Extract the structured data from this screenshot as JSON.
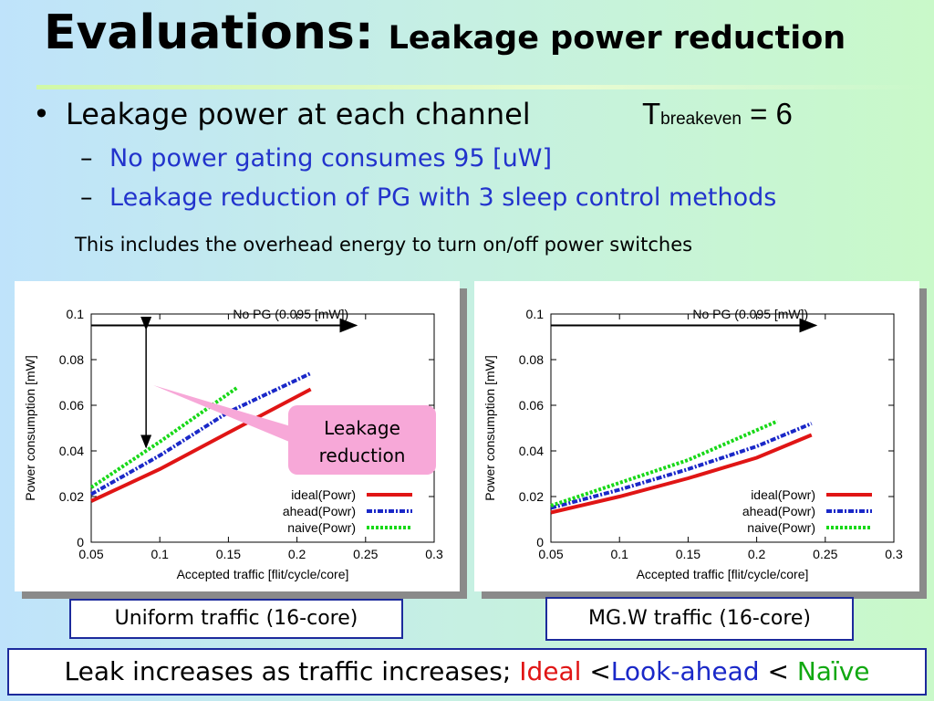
{
  "slide": {
    "title_main": "Evaluations:",
    "title_sub": "Leakage power reduction",
    "bullet": "Leakage power at each channel",
    "tbreakeven": {
      "t": "T",
      "sub": "breakeven",
      "rest": " = 6"
    },
    "sub_items": [
      "No power gating consumes 95 [uW]",
      "Leakage reduction of PG with 3 sleep control methods"
    ],
    "note": "This includes the overhead energy to turn on/off power switches",
    "callout": [
      "Leakage",
      "reduction"
    ],
    "captions": [
      "Uniform traffic (16-core)",
      "MG.W traffic (16-core)"
    ],
    "conclusion": {
      "prefix": "Leak increases as traffic increases; ",
      "ideal": "Ideal",
      "lt1": " <",
      "ahead": "Look-ahead",
      "lt2": " < ",
      "naive": "Naïve"
    }
  },
  "colors": {
    "ideal": "#e01515",
    "ahead": "#1a28c8",
    "naive": "#18d818"
  },
  "chart_data": [
    {
      "type": "line",
      "xlabel": "Accepted traffic [flit/cycle/core]",
      "ylabel": "Power consumption [mW]",
      "xlim": [
        0.05,
        0.3
      ],
      "ylim": [
        0,
        0.1
      ],
      "x_ticks": [
        "0.05",
        "0.1",
        "0.15",
        "0.2",
        "0.25",
        "0.3"
      ],
      "y_ticks": [
        "0",
        "0.02",
        "0.04",
        "0.06",
        "0.08",
        "0.1"
      ],
      "annotation": "No PG (0.095 [mW])",
      "reference_y": 0.095,
      "legend_position": "bottom-right",
      "series": [
        {
          "name": "ideal(Powr)",
          "key": "ideal",
          "x": [
            0.05,
            0.1,
            0.15,
            0.21
          ],
          "y": [
            0.018,
            0.032,
            0.048,
            0.067
          ]
        },
        {
          "name": "ahead(Powr)",
          "key": "ahead",
          "x": [
            0.05,
            0.1,
            0.15,
            0.21
          ],
          "y": [
            0.021,
            0.038,
            0.057,
            0.074
          ]
        },
        {
          "name": "naive(Powr)",
          "key": "naive",
          "x": [
            0.05,
            0.1,
            0.157
          ],
          "y": [
            0.024,
            0.044,
            0.068
          ]
        }
      ]
    },
    {
      "type": "line",
      "xlabel": "Accepted traffic [flit/cycle/core]",
      "ylabel": "Power consumption [mW]",
      "xlim": [
        0.05,
        0.3
      ],
      "ylim": [
        0,
        0.1
      ],
      "x_ticks": [
        "0.05",
        "0.1",
        "0.15",
        "0.2",
        "0.25",
        "0.3"
      ],
      "y_ticks": [
        "0",
        "0.02",
        "0.04",
        "0.06",
        "0.08",
        "0.1"
      ],
      "annotation": "No PG (0.095 [mW])",
      "reference_y": 0.095,
      "legend_position": "bottom-right",
      "series": [
        {
          "name": "ideal(Powr)",
          "key": "ideal",
          "x": [
            0.05,
            0.1,
            0.15,
            0.2,
            0.24
          ],
          "y": [
            0.013,
            0.02,
            0.028,
            0.037,
            0.047
          ]
        },
        {
          "name": "ahead(Powr)",
          "key": "ahead",
          "x": [
            0.05,
            0.1,
            0.15,
            0.2,
            0.24
          ],
          "y": [
            0.015,
            0.023,
            0.032,
            0.042,
            0.052
          ]
        },
        {
          "name": "naive(Powr)",
          "key": "naive",
          "x": [
            0.05,
            0.1,
            0.15,
            0.215
          ],
          "y": [
            0.016,
            0.026,
            0.036,
            0.053
          ]
        }
      ]
    }
  ]
}
